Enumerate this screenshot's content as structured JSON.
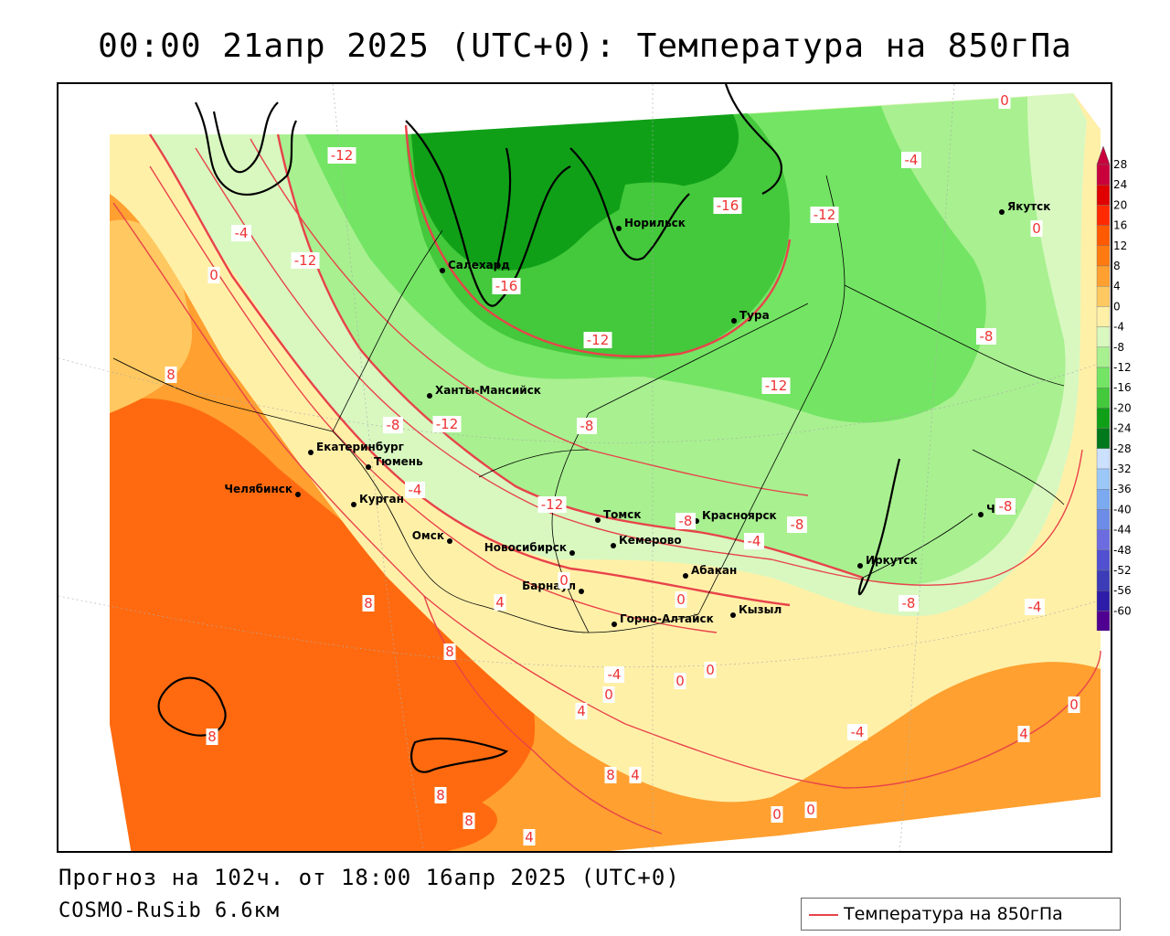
{
  "title": "00:00 21апр 2025 (UTC+0): Температура на 850гПа",
  "footer": {
    "forecast": "Прогноз на 102ч. от 18:00 16апр 2025 (UTC+0)",
    "model": "COSMO-RuSib 6.6км"
  },
  "legend": {
    "label": "Температура на 850гПа",
    "line_color": "#e8434a"
  },
  "colorbar": {
    "ticks": [
      "28",
      "24",
      "20",
      "16",
      "12",
      "8",
      "4",
      "0",
      "-4",
      "-8",
      "-12",
      "-16",
      "-20",
      "-24",
      "-28",
      "-32",
      "-36",
      "-40",
      "-44",
      "-48",
      "-52",
      "-56",
      "-60"
    ],
    "colors": [
      "#c8003c",
      "#e00000",
      "#ff2a00",
      "#ff5a00",
      "#ff7a10",
      "#ffa030",
      "#ffc860",
      "#fff0a8",
      "#d8f8c0",
      "#a8f090",
      "#74e464",
      "#44c83c",
      "#10a018",
      "#00781c",
      "#cce0ff",
      "#9cc8f8",
      "#7caaf0",
      "#6c8ce8",
      "#6c6ce0",
      "#5050d0",
      "#3c3cb8",
      "#2c1ca8",
      "#500090"
    ]
  },
  "cities": [
    {
      "name": "Салехард"
    },
    {
      "name": "Норильск"
    },
    {
      "name": "Тура"
    },
    {
      "name": "Якутск"
    },
    {
      "name": "Ханты-Мансийск"
    },
    {
      "name": "Екатеринбург"
    },
    {
      "name": "Тюмень"
    },
    {
      "name": "Челябинск"
    },
    {
      "name": "Курган"
    },
    {
      "name": "Омск"
    },
    {
      "name": "Новосибирск"
    },
    {
      "name": "Томск"
    },
    {
      "name": "Кемерово"
    },
    {
      "name": "Красноярск"
    },
    {
      "name": "Барнаул"
    },
    {
      "name": "Абакан"
    },
    {
      "name": "Горно-Алтайск"
    },
    {
      "name": "Кызыл"
    },
    {
      "name": "Иркутск"
    },
    {
      "name": "Чита"
    }
  ],
  "isotherm_labels": [
    "-12",
    "-12",
    "-16",
    "-16",
    "-12",
    "-12",
    "-12",
    "-4",
    "-4",
    "0",
    "0",
    "0",
    "8",
    "-8",
    "-12",
    "-8",
    "-12",
    "-8",
    "-8",
    "-4",
    "4",
    "0",
    "-4",
    "-8",
    "-8",
    "-4",
    "8",
    "8",
    "8",
    "4",
    "0",
    "-4",
    "0",
    "0",
    "0",
    "4",
    "4",
    "8",
    "8",
    "4",
    "0",
    "0",
    "-4",
    "0",
    "8",
    "-8"
  ]
}
